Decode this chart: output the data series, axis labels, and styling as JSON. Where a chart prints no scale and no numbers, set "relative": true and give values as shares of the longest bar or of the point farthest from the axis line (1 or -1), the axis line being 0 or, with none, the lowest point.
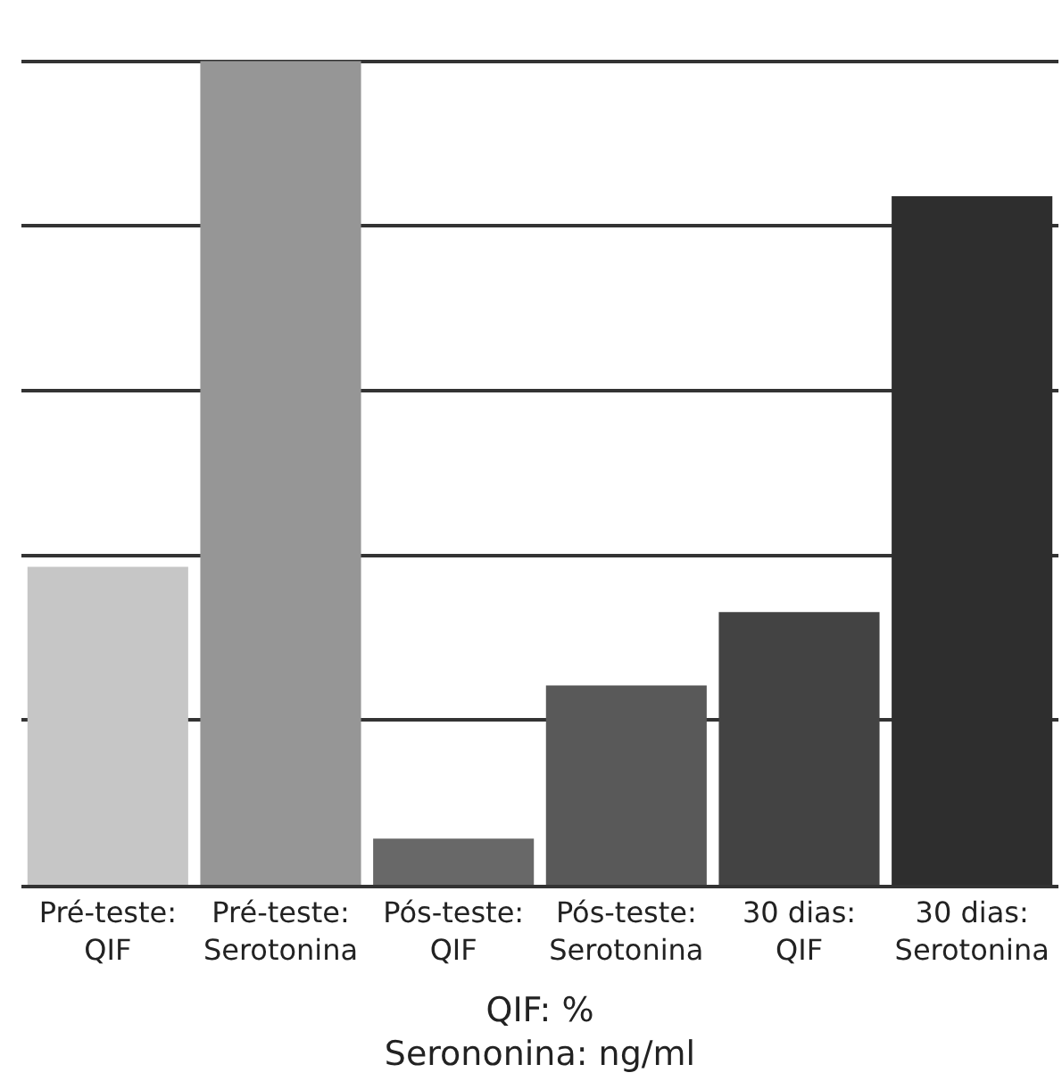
{
  "chart_data": {
    "type": "bar",
    "relative": true,
    "grid": "y",
    "categories": [
      "Pré-teste:\nQIF",
      "Pré-teste:\nSerotonina",
      "Pós-teste:\nQIF",
      "Pós-teste:\nSerotonina",
      "30 dias:\nQIF",
      "30 dias:\nSerotonina"
    ],
    "values": [
      0.386,
      1,
      0.056,
      0.242,
      0.331,
      0.836
    ],
    "colors": [
      "#c6c6c6",
      "#969696",
      "#686868",
      "#595959",
      "#434343",
      "#2e2e2e"
    ],
    "xlabel": "QIF: %\nSerononina: ng/ml"
  }
}
